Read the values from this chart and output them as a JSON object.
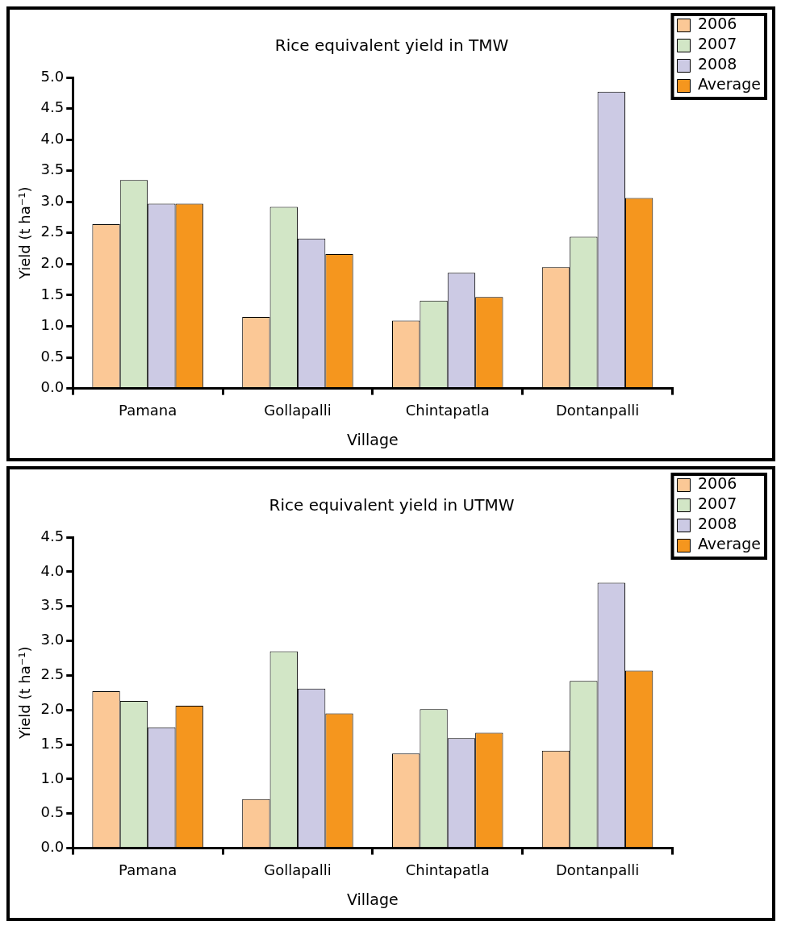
{
  "chart_data": [
    {
      "type": "bar",
      "title": "Rice equivalent yield in TMW",
      "xlabel": "Village",
      "ylabel": "Yield (t ha⁻¹)",
      "categories": [
        "Pamana",
        "Gollapalli",
        "Chintapatla",
        "Dontanpalli"
      ],
      "series": [
        {
          "name": "2006",
          "color": "#fbc896",
          "values": [
            2.64,
            1.15,
            1.09,
            1.95
          ]
        },
        {
          "name": "2007",
          "color": "#d2e6c6",
          "values": [
            3.35,
            2.92,
            1.41,
            2.44
          ]
        },
        {
          "name": "2008",
          "color": "#cccae4",
          "values": [
            2.97,
            2.41,
            1.86,
            4.77
          ]
        },
        {
          "name": "Average",
          "color": "#f5961e",
          "values": [
            2.97,
            2.16,
            1.47,
            3.06
          ]
        }
      ],
      "ylim": [
        0,
        5
      ],
      "yticks": [
        {
          "value": 0,
          "label": "0.0"
        },
        {
          "value": 0.5,
          "label": "0.5"
        },
        {
          "value": 1,
          "label": "1.0"
        },
        {
          "value": 1.5,
          "label": "1.5"
        },
        {
          "value": 2,
          "label": "2.0"
        },
        {
          "value": 2.5,
          "label": "2.5"
        },
        {
          "value": 3,
          "label": "3.0"
        },
        {
          "value": 3.5,
          "label": "3.5"
        },
        {
          "value": 4,
          "label": "4.0"
        },
        {
          "value": 4.5,
          "label": "4.5"
        },
        {
          "value": 5,
          "label": "5.0"
        }
      ],
      "grid": false,
      "legend": "top right"
    },
    {
      "type": "bar",
      "title": "Rice equivalent yield in UTMW",
      "xlabel": "Village",
      "ylabel": "Yield (t ha⁻¹)",
      "categories": [
        "Pamana",
        "Gollapalli",
        "Chintapatla",
        "Dontanpalli"
      ],
      "series": [
        {
          "name": "2006",
          "color": "#fbc896",
          "values": [
            2.27,
            0.71,
            1.37,
            1.41
          ]
        },
        {
          "name": "2007",
          "color": "#d2e6c6",
          "values": [
            2.13,
            2.85,
            2.01,
            2.42
          ]
        },
        {
          "name": "2008",
          "color": "#cccae4",
          "values": [
            1.75,
            2.31,
            1.59,
            3.84
          ]
        },
        {
          "name": "Average",
          "color": "#f5961e",
          "values": [
            2.06,
            1.95,
            1.67,
            2.57
          ]
        }
      ],
      "ylim": [
        0,
        4.5
      ],
      "yticks": [
        {
          "value": 0,
          "label": "0.0"
        },
        {
          "value": 0.5,
          "label": "0.5"
        },
        {
          "value": 1,
          "label": "1.0"
        },
        {
          "value": 1.5,
          "label": "1.5"
        },
        {
          "value": 2,
          "label": "2.0"
        },
        {
          "value": 2.5,
          "label": "2.5"
        },
        {
          "value": 3,
          "label": "3.0"
        },
        {
          "value": 3.5,
          "label": "3.5"
        },
        {
          "value": 4,
          "label": "4.0"
        },
        {
          "value": 4.5,
          "label": "4.5"
        }
      ],
      "grid": false,
      "legend": "top right"
    }
  ]
}
